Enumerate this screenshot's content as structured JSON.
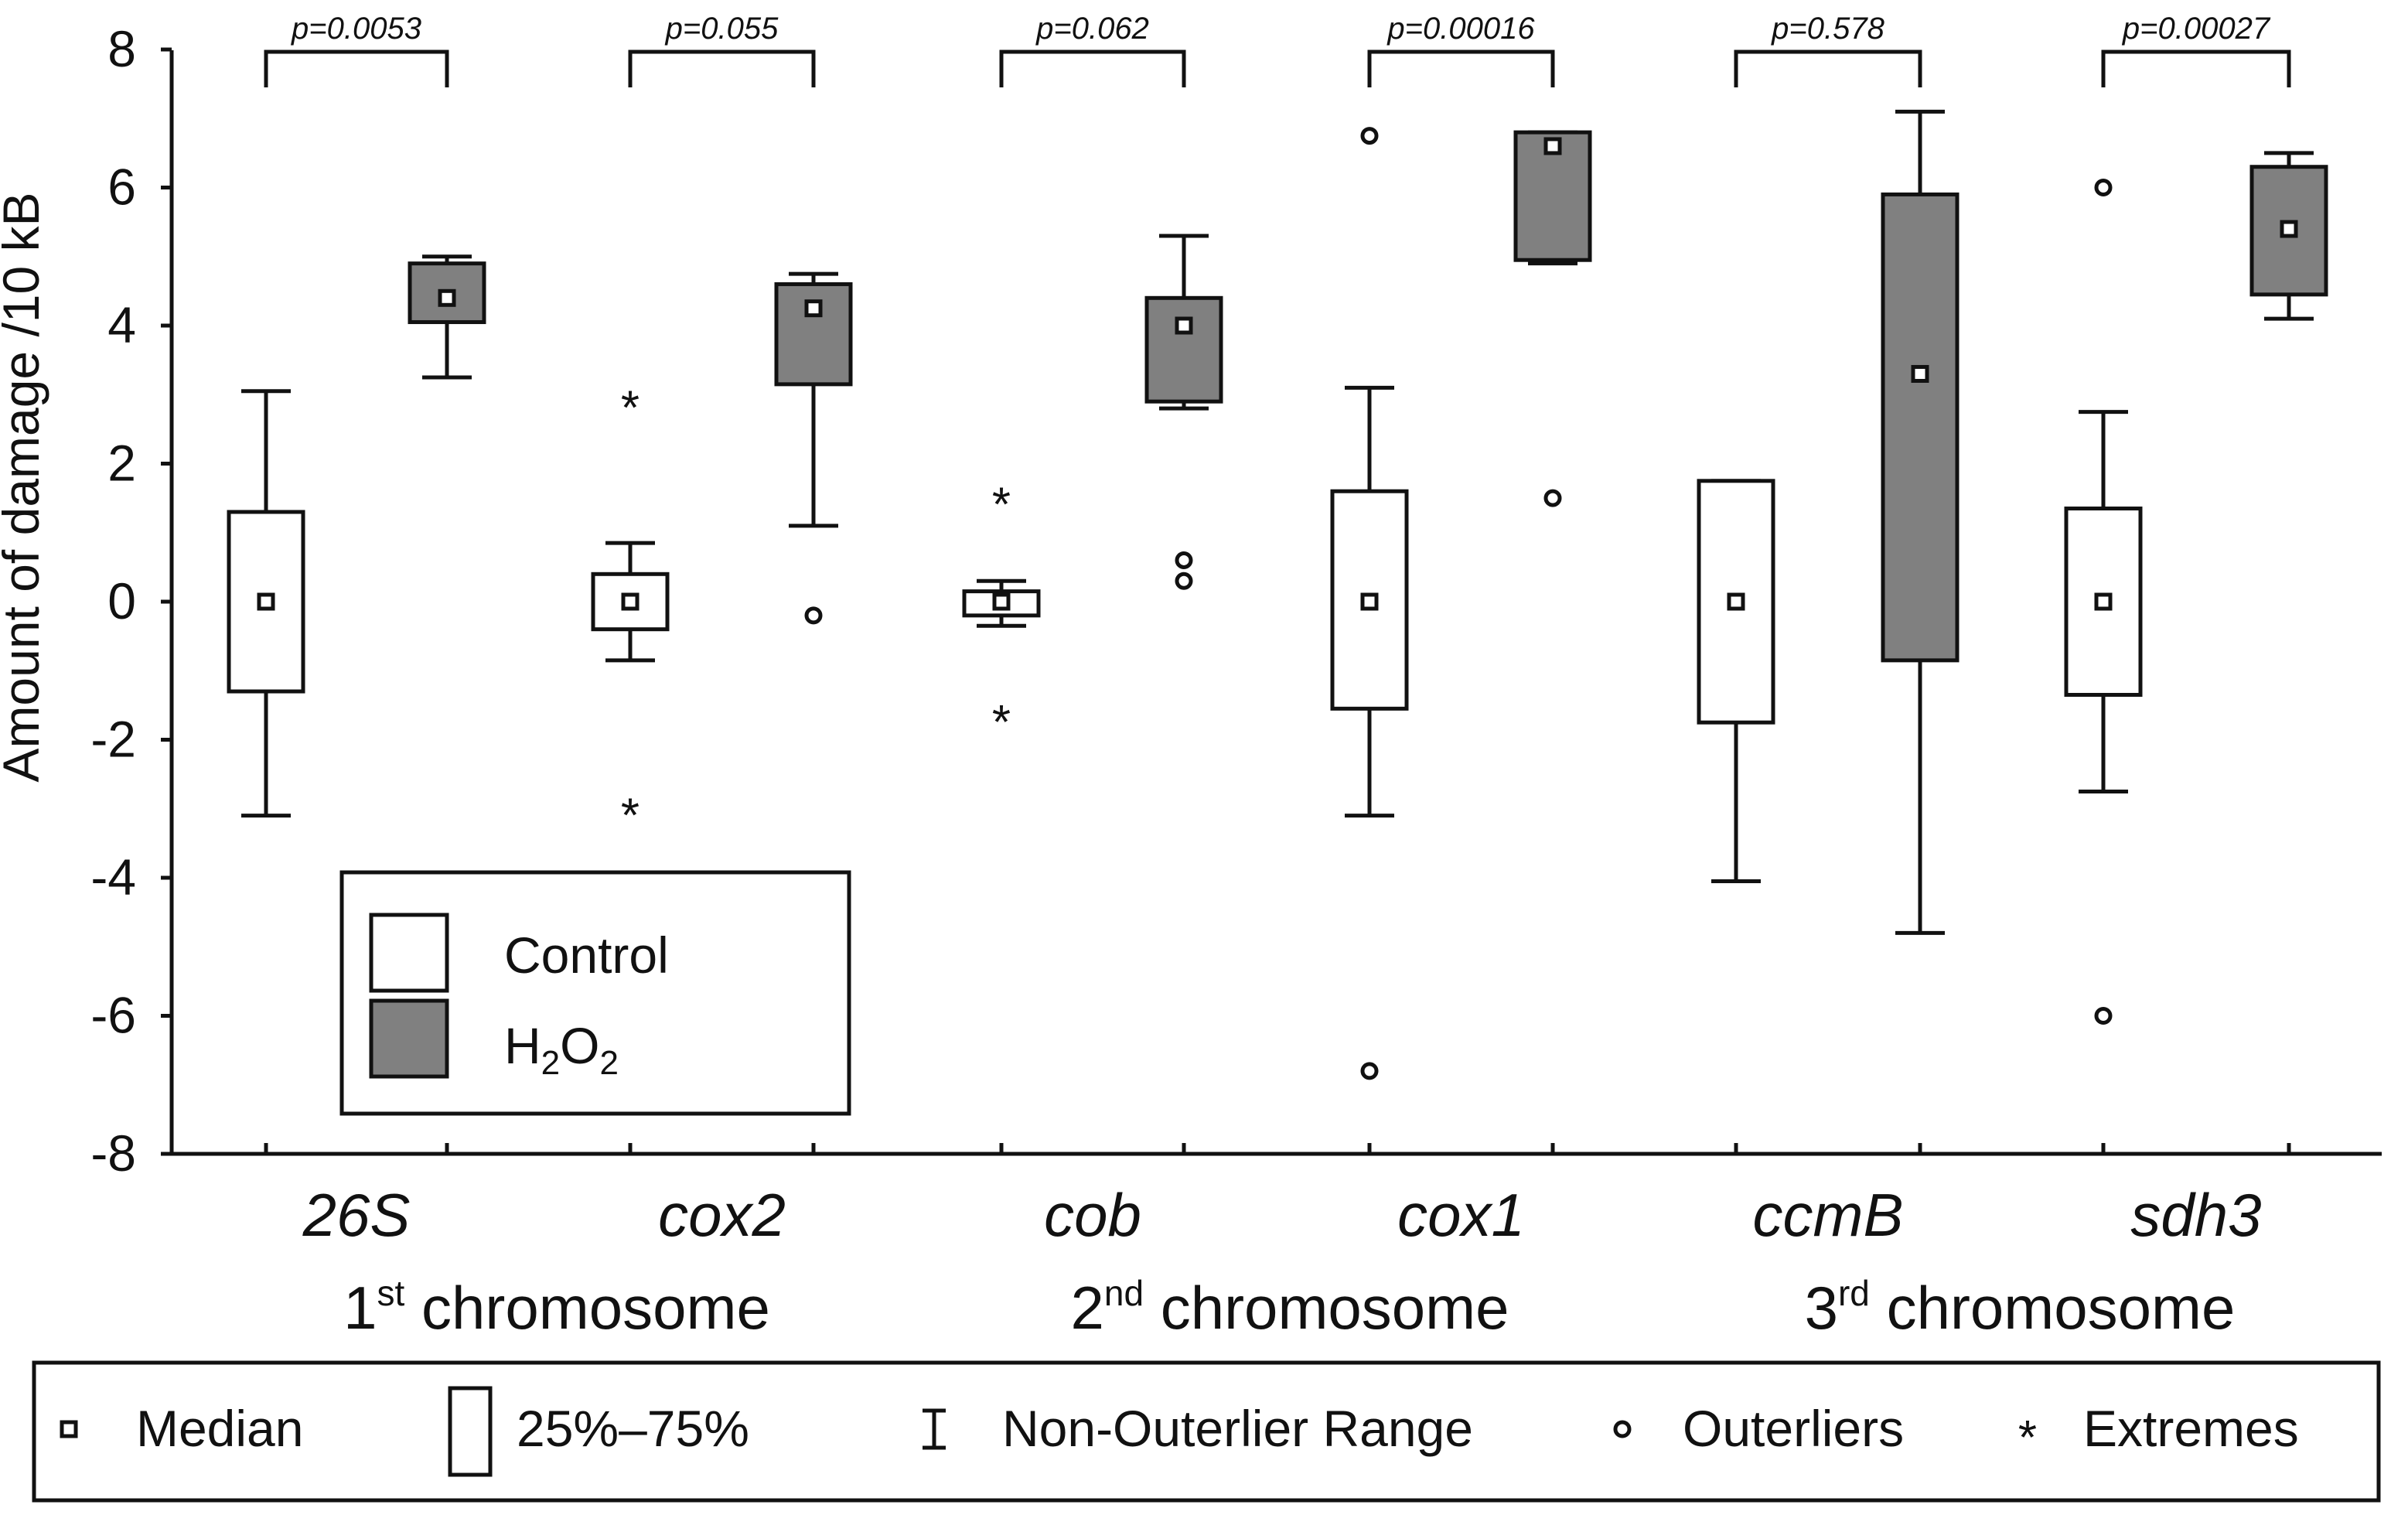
{
  "chart_data": {
    "type": "boxplot",
    "ylabel": "Amount of damage /10 kB",
    "ylim": [
      -8,
      8
    ],
    "yticks": [
      8,
      6,
      4,
      2,
      0,
      -2,
      -4,
      -6,
      -8
    ],
    "colors": {
      "control": "#ffffff",
      "h2o2": "#808080",
      "line": "#111111"
    },
    "genes": [
      {
        "name": "26S",
        "pvalue": "p=0.0053",
        "control": {
          "median": 0,
          "q1": -1.3,
          "q3": 1.3,
          "whisker_low": -3.1,
          "whisker_high": 3.05,
          "outliers": [],
          "extremes": []
        },
        "h2o2": {
          "median": 4.4,
          "q1": 4.05,
          "q3": 4.9,
          "whisker_low": 3.25,
          "whisker_high": 5.0,
          "outliers": [],
          "extremes": []
        }
      },
      {
        "name": "cox2",
        "pvalue": "p=0.055",
        "control": {
          "median": 0,
          "q1": -0.4,
          "q3": 0.4,
          "whisker_low": -0.85,
          "whisker_high": 0.85,
          "outliers": [],
          "extremes": [
            2.95,
            -2.95
          ]
        },
        "h2o2": {
          "median": 4.25,
          "q1": 3.15,
          "q3": 4.6,
          "whisker_low": 1.1,
          "whisker_high": 4.75,
          "outliers": [
            -0.2
          ],
          "extremes": []
        }
      },
      {
        "name": "cob",
        "pvalue": "p=0.062",
        "control": {
          "median": 0,
          "q1": -0.2,
          "q3": 0.15,
          "whisker_low": -0.35,
          "whisker_high": 0.3,
          "outliers": [],
          "extremes": [
            1.55,
            -1.6
          ]
        },
        "h2o2": {
          "median": 4.0,
          "q1": 2.9,
          "q3": 4.4,
          "whisker_low": 2.8,
          "whisker_high": 5.3,
          "outliers": [
            0.6,
            0.3
          ],
          "extremes": []
        }
      },
      {
        "name": "cox1",
        "pvalue": "p=0.00016",
        "control": {
          "median": 0,
          "q1": -1.55,
          "q3": 1.6,
          "whisker_low": -3.1,
          "whisker_high": 3.1,
          "outliers": [
            6.75,
            -6.8
          ],
          "extremes": []
        },
        "h2o2": {
          "median": 6.6,
          "q1": 4.95,
          "q3": 6.8,
          "whisker_low": 4.9,
          "whisker_high": 6.8,
          "outliers": [
            1.5
          ],
          "extremes": []
        }
      },
      {
        "name": "ccmB",
        "pvalue": "p=0.578",
        "control": {
          "median": 0,
          "q1": -1.75,
          "q3": 1.75,
          "whisker_low": -4.05,
          "whisker_high": 1.75,
          "outliers": [],
          "extremes": []
        },
        "h2o2": {
          "median": 3.3,
          "q1": -0.85,
          "q3": 5.9,
          "whisker_low": -4.8,
          "whisker_high": 7.1,
          "outliers": [],
          "extremes": []
        }
      },
      {
        "name": "sdh3",
        "pvalue": "p=0.00027",
        "control": {
          "median": 0,
          "q1": -1.35,
          "q3": 1.35,
          "whisker_low": -2.75,
          "whisker_high": 2.75,
          "outliers": [
            6.0,
            -6.0
          ],
          "extremes": []
        },
        "h2o2": {
          "median": 5.4,
          "q1": 4.45,
          "q3": 6.3,
          "whisker_low": 4.1,
          "whisker_high": 6.5,
          "outliers": [],
          "extremes": []
        }
      }
    ],
    "chromosomes": [
      {
        "ordinal": "1",
        "sup": "st",
        "label": "chromosome"
      },
      {
        "ordinal": "2",
        "sup": "nd",
        "label": "chromosome"
      },
      {
        "ordinal": "3",
        "sup": "rd",
        "label": "chromosome"
      }
    ],
    "legend": {
      "control": "Control",
      "h2o2": {
        "p1": "H",
        "s1": "2",
        "p2": "O",
        "s2": "2"
      }
    },
    "key": {
      "median": "Median",
      "box": "25%–75%",
      "range": "Non-Outerlier Range",
      "outliers": "Outerliers",
      "extremes": "Extremes"
    }
  }
}
